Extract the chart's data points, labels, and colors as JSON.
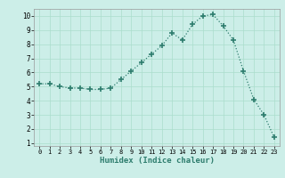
{
  "x": [
    0,
    1,
    2,
    3,
    4,
    5,
    6,
    7,
    8,
    9,
    10,
    11,
    12,
    13,
    14,
    15,
    16,
    17,
    18,
    19,
    20,
    21,
    22,
    23
  ],
  "y": [
    5.2,
    5.2,
    5.0,
    4.9,
    4.9,
    4.8,
    4.8,
    4.9,
    5.5,
    6.1,
    6.7,
    7.3,
    7.9,
    8.8,
    8.3,
    9.4,
    10.0,
    10.1,
    9.3,
    8.3,
    6.1,
    4.1,
    3.0,
    1.4
  ],
  "line_color": "#2e7d6e",
  "bg_color": "#cceee8",
  "grid_color": "#aaddcc",
  "xlabel": "Humidex (Indice chaleur)",
  "xlim": [
    -0.5,
    23.5
  ],
  "ylim": [
    0.8,
    10.5
  ],
  "yticks": [
    1,
    2,
    3,
    4,
    5,
    6,
    7,
    8,
    9,
    10
  ],
  "xticks": [
    0,
    1,
    2,
    3,
    4,
    5,
    6,
    7,
    8,
    9,
    10,
    11,
    12,
    13,
    14,
    15,
    16,
    17,
    18,
    19,
    20,
    21,
    22,
    23
  ]
}
